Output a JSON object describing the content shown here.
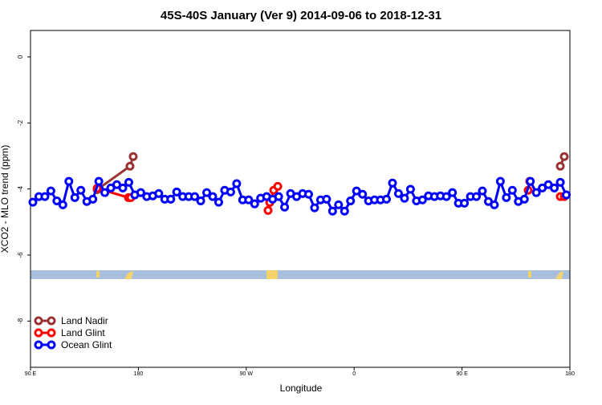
{
  "chart_data": {
    "type": "line",
    "title": "45S-40S January (Ver 9)   2014-09-06 to 2018-12-31",
    "x_label": "Longitude",
    "y_label": "XCO2 - MLO trend (ppm)",
    "xlim": [
      90,
      540
    ],
    "ylim": [
      0.8,
      -9.4
    ],
    "xticks": [
      {
        "value": 90,
        "label": "90 E"
      },
      {
        "value": 180,
        "label": "180"
      },
      {
        "value": 270,
        "label": "90 W"
      },
      {
        "value": 360,
        "label": "0"
      },
      {
        "value": 450,
        "label": "90 E"
      },
      {
        "value": 540,
        "label": "180"
      }
    ],
    "yticks": [
      0,
      -2,
      -4,
      -6,
      -8
    ],
    "legend": "bottom-left",
    "series": [
      {
        "name": "Land Nadir",
        "color": "#993333",
        "x": [
          145.6,
          173,
          175.7,
          null,
          532,
          535.3
        ],
        "values": [
          -4.02,
          -3.31,
          -3.02,
          null,
          -3.31,
          -3.02
        ]
      },
      {
        "name": "Land Glint",
        "color": "#ff0000",
        "x": [
          145.6,
          171.7,
          173.7,
          null,
          288.2,
          289.6,
          292.9,
          296.3,
          null,
          505.2,
          506.5,
          null,
          532,
          535.3
        ],
        "values": [
          -3.98,
          -4.26,
          -4.26,
          null,
          -4.65,
          -4.41,
          -4.04,
          -3.92,
          null,
          -4.04,
          -3.77,
          null,
          -4.23,
          -4.23
        ]
      },
      {
        "name": "Ocean Glint",
        "color": "#0000ff",
        "x": [
          92,
          97,
          102,
          107,
          112,
          117,
          122,
          127,
          132,
          137,
          142,
          147,
          152,
          157,
          162,
          167,
          172,
          177,
          182,
          187,
          192,
          197,
          202,
          207,
          212,
          217,
          222,
          227,
          232,
          237,
          242,
          247,
          252,
          257,
          262,
          267,
          272,
          277,
          282,
          287,
          292,
          297,
          302,
          307,
          312,
          317,
          322,
          327,
          332,
          337,
          342,
          347,
          352,
          357,
          362,
          367,
          372,
          377,
          382,
          387,
          392,
          397,
          402,
          407,
          412,
          417,
          422,
          427,
          432,
          437,
          442,
          447,
          452,
          457,
          462,
          467,
          472,
          477,
          482,
          487,
          492,
          497,
          502,
          507,
          512,
          517,
          522,
          527,
          532,
          537
        ],
        "values": [
          -4.4,
          -4.23,
          -4.23,
          -4.06,
          -4.36,
          -4.48,
          -3.77,
          -4.26,
          -4.04,
          -4.38,
          -4.31,
          -3.77,
          -4.11,
          -3.97,
          -3.87,
          -3.97,
          -3.8,
          -4.18,
          -4.11,
          -4.23,
          -4.21,
          -4.14,
          -4.31,
          -4.31,
          -4.09,
          -4.23,
          -4.23,
          -4.23,
          -4.36,
          -4.11,
          -4.23,
          -4.4,
          -4.04,
          -4.09,
          -3.84,
          -4.33,
          -4.33,
          -4.45,
          -4.28,
          -4.23,
          -4.31,
          -4.23,
          -4.55,
          -4.14,
          -4.23,
          -4.14,
          -4.16,
          -4.57,
          -4.33,
          -4.31,
          -4.67,
          -4.48,
          -4.67,
          -4.36,
          -4.06,
          -4.16,
          -4.36,
          -4.33,
          -4.33,
          -4.31,
          -3.82,
          -4.14,
          -4.28,
          -4.01,
          -4.36,
          -4.33,
          -4.21,
          -4.23,
          -4.21,
          -4.23,
          -4.11,
          -4.43,
          -4.43,
          -4.23,
          -4.23,
          -4.06,
          -4.38,
          -4.48,
          -3.77,
          -4.26,
          -4.04,
          -4.38,
          -4.31,
          -3.77,
          -4.11,
          -3.97,
          -3.87,
          -3.97,
          -3.8,
          -4.18
        ]
      }
    ]
  }
}
